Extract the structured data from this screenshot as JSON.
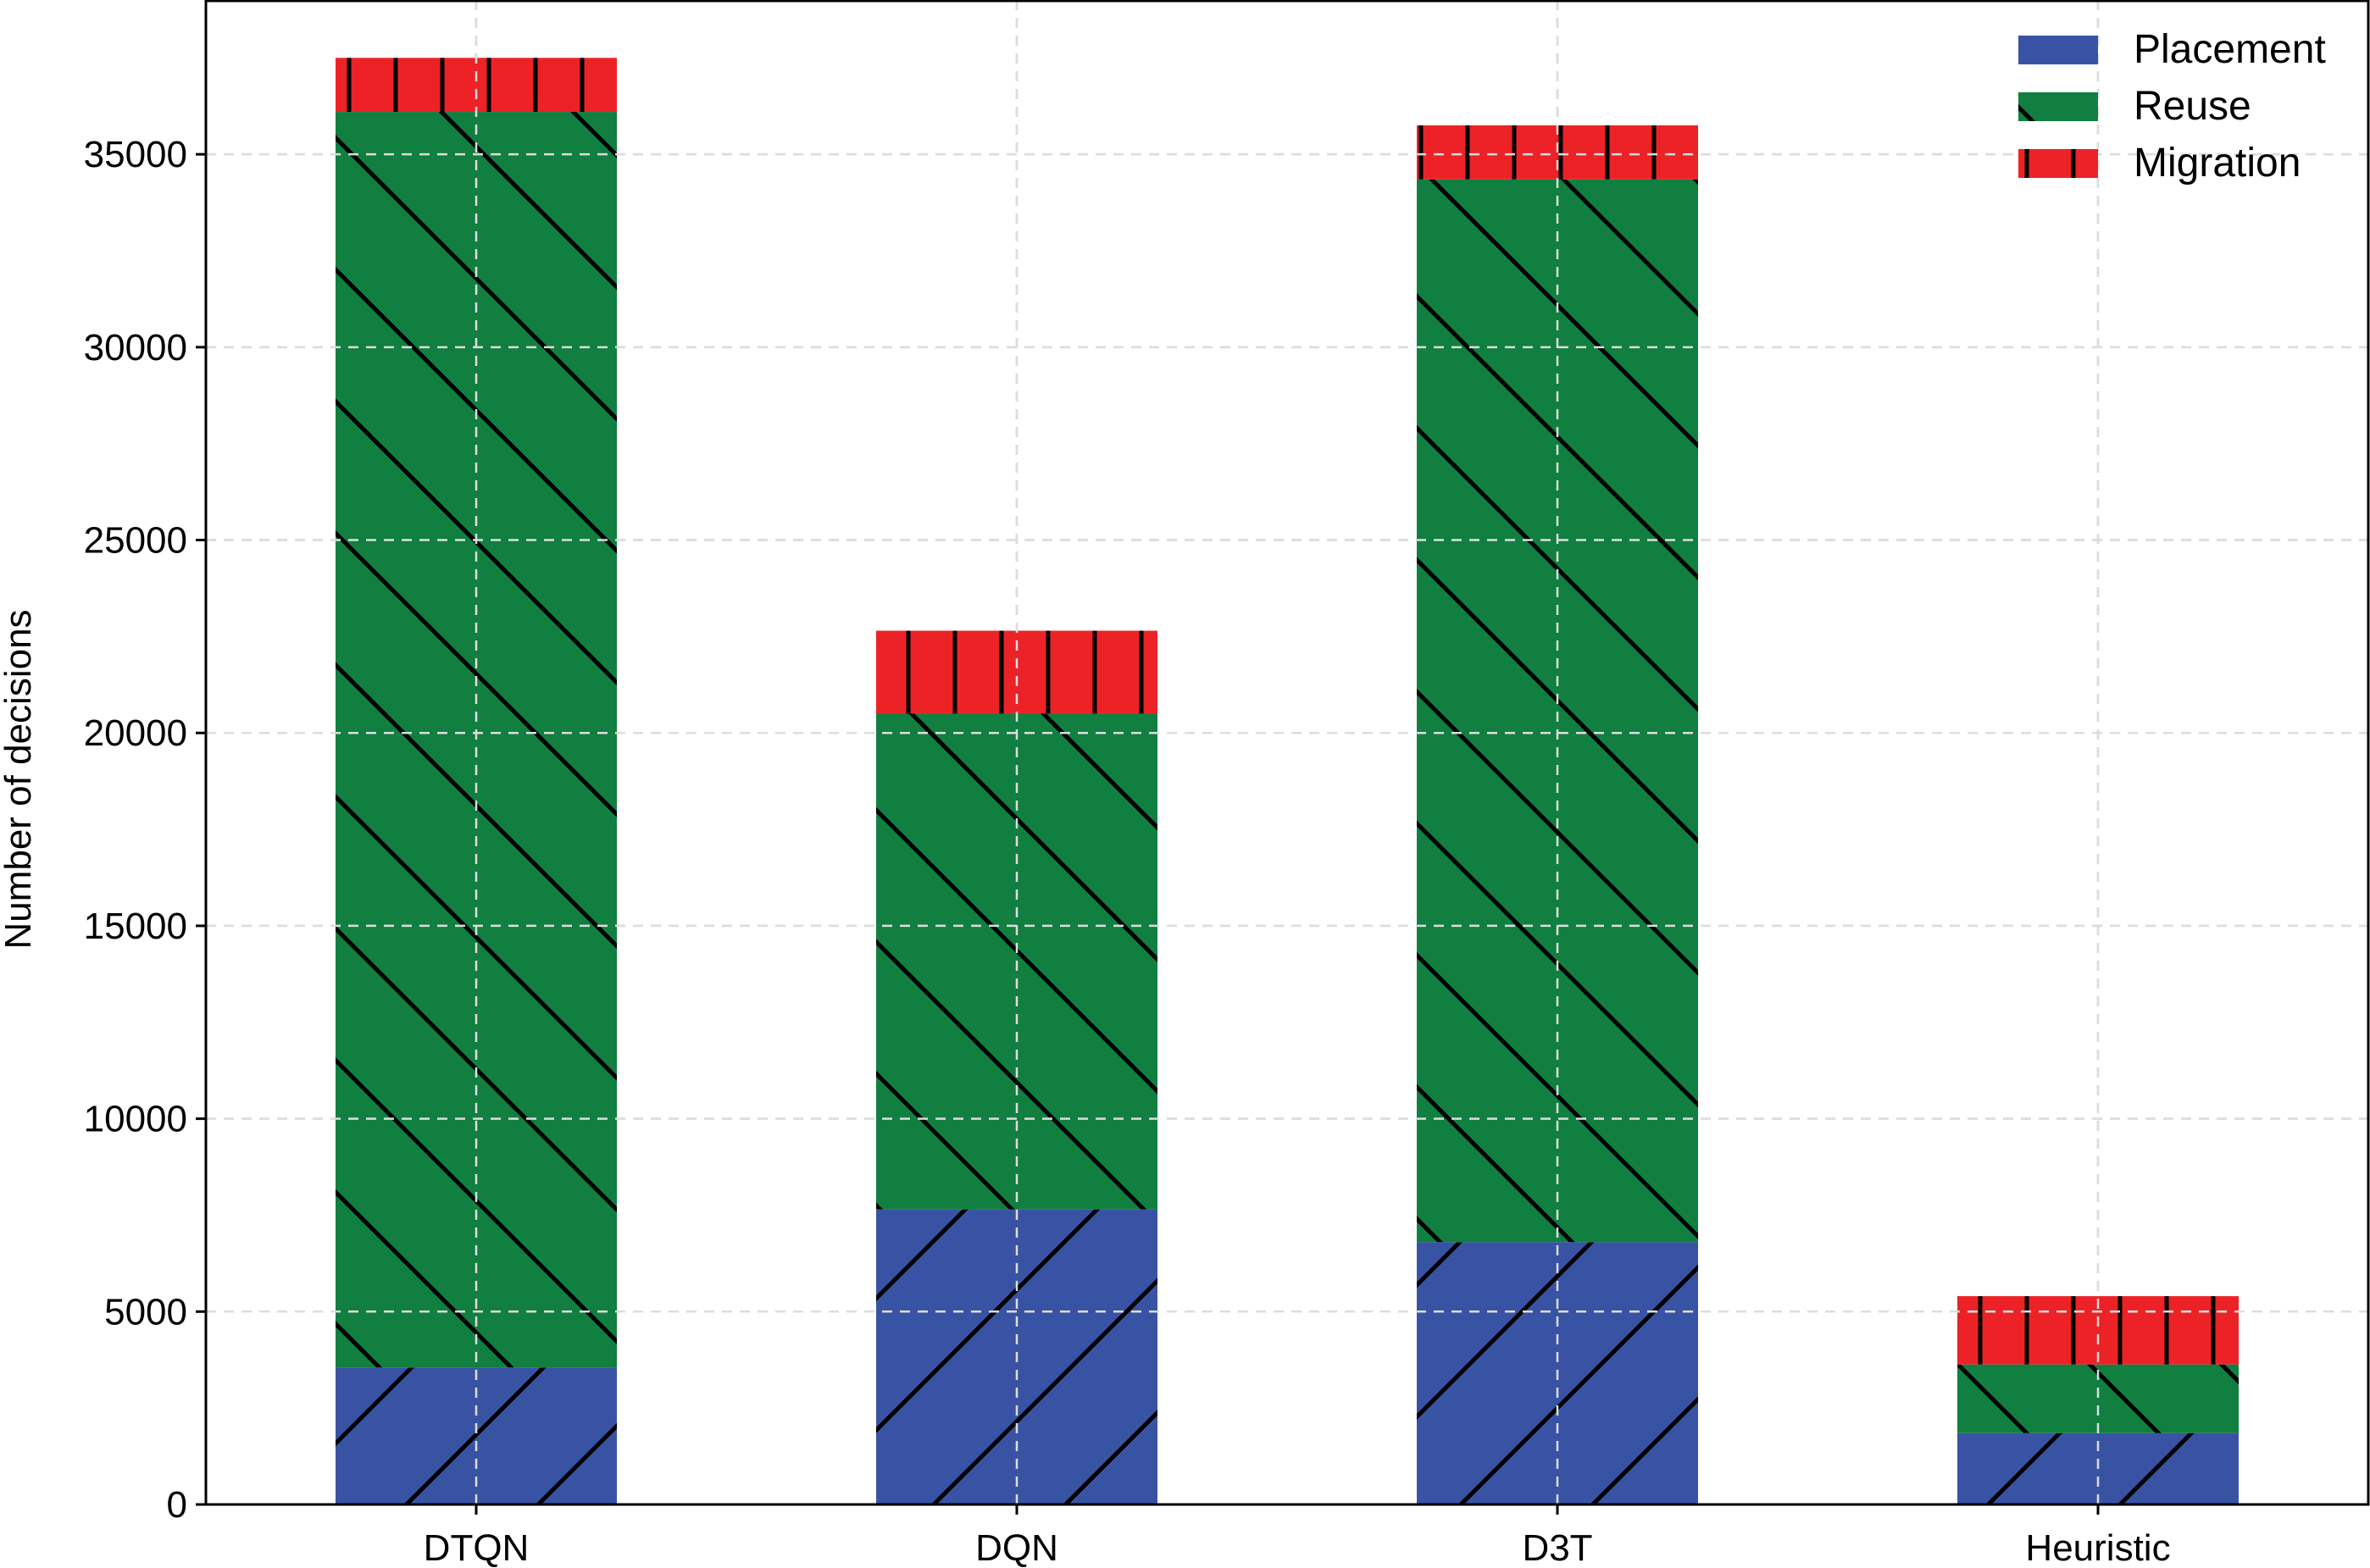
{
  "chart_data": {
    "type": "bar",
    "stacked": true,
    "categories": [
      "DTQN",
      "DQN",
      "D3T",
      "Heuristic"
    ],
    "series": [
      {
        "name": "Placement",
        "values": [
          3550,
          7650,
          6800,
          1850
        ],
        "color": "#3953a4",
        "hatch": "forward-diagonal"
      },
      {
        "name": "Reuse",
        "values": [
          32550,
          12850,
          27550,
          1780
        ],
        "color": "#107f40",
        "hatch": "back-diagonal"
      },
      {
        "name": "Migration",
        "values": [
          1400,
          2150,
          1400,
          1770
        ],
        "color": "#ec2227",
        "hatch": "vertical"
      }
    ],
    "xlabel": "",
    "ylabel": "Number of decisions",
    "ylim": [
      0,
      39000
    ],
    "yticks": [
      0,
      5000,
      10000,
      15000,
      20000,
      25000,
      30000,
      35000
    ],
    "grid": true,
    "legend_position": "top-right"
  }
}
